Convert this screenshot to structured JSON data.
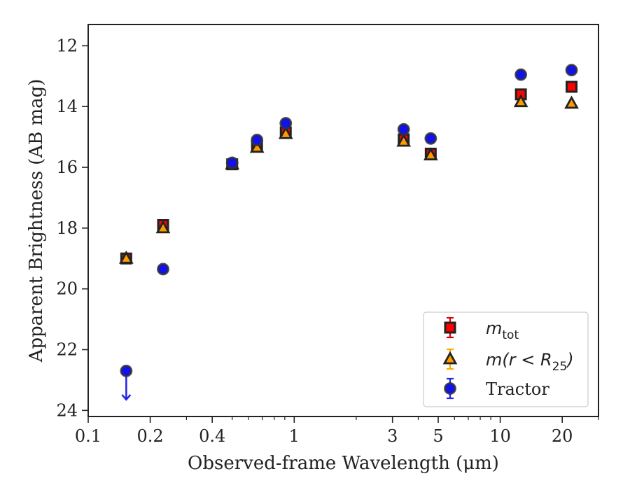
{
  "chart_data": {
    "type": "scatter",
    "xlabel": "Observed-frame Wavelength (μm)",
    "ylabel": "Apparent Brightness (AB mag)",
    "x_scale": "log",
    "xlim": [
      0.1,
      30
    ],
    "ylim": [
      24.2,
      11.3
    ],
    "y_inverted": true,
    "x_ticks": [
      0.1,
      0.2,
      0.4,
      1,
      3,
      5,
      10,
      20
    ],
    "x_tick_labels": [
      "0.1",
      "0.2",
      "0.4",
      "1",
      "3",
      "5",
      "10",
      "20"
    ],
    "y_ticks": [
      12,
      14,
      16,
      18,
      20,
      22,
      24
    ],
    "y_tick_labels": [
      "12",
      "14",
      "16",
      "18",
      "20",
      "22",
      "24"
    ],
    "legend_position": "lower-right",
    "series": [
      {
        "name": "m_tot",
        "legend_main": "m",
        "legend_sub": "tot",
        "marker": "square",
        "color": "#ff0000",
        "edge": "#222222",
        "points": [
          {
            "x": 0.153,
            "y": 19.0
          },
          {
            "x": 0.231,
            "y": 17.9
          },
          {
            "x": 0.5,
            "y": 15.9
          },
          {
            "x": 0.66,
            "y": 15.3
          },
          {
            "x": 0.91,
            "y": 14.85
          },
          {
            "x": 3.4,
            "y": 15.08
          },
          {
            "x": 4.6,
            "y": 15.55
          },
          {
            "x": 12.6,
            "y": 13.6
          },
          {
            "x": 22.2,
            "y": 13.35
          }
        ]
      },
      {
        "name": "m(r < R_25)",
        "legend_main": "m(r < R",
        "legend_sub": "25",
        "legend_tail": ")",
        "marker": "triangle",
        "color": "#ff9900",
        "edge": "#222222",
        "points": [
          {
            "x": 0.153,
            "y": 19.0
          },
          {
            "x": 0.231,
            "y": 18.0
          },
          {
            "x": 0.5,
            "y": 15.9
          },
          {
            "x": 0.66,
            "y": 15.35
          },
          {
            "x": 0.91,
            "y": 14.9
          },
          {
            "x": 3.4,
            "y": 15.15
          },
          {
            "x": 4.6,
            "y": 15.6
          },
          {
            "x": 12.6,
            "y": 13.85
          },
          {
            "x": 22.2,
            "y": 13.9
          }
        ]
      },
      {
        "name": "Tractor",
        "marker": "circle",
        "color": "#1111ee",
        "edge": "#333333",
        "upper_limit_color": "#2222ee",
        "points": [
          {
            "x": 0.153,
            "y": 22.7,
            "upper_limit": true
          },
          {
            "x": 0.231,
            "y": 19.35
          },
          {
            "x": 0.5,
            "y": 15.85
          },
          {
            "x": 0.66,
            "y": 15.1
          },
          {
            "x": 0.91,
            "y": 14.55
          },
          {
            "x": 3.4,
            "y": 14.75
          },
          {
            "x": 4.6,
            "y": 15.05
          },
          {
            "x": 12.6,
            "y": 12.95
          },
          {
            "x": 22.2,
            "y": 12.8
          }
        ]
      }
    ]
  }
}
